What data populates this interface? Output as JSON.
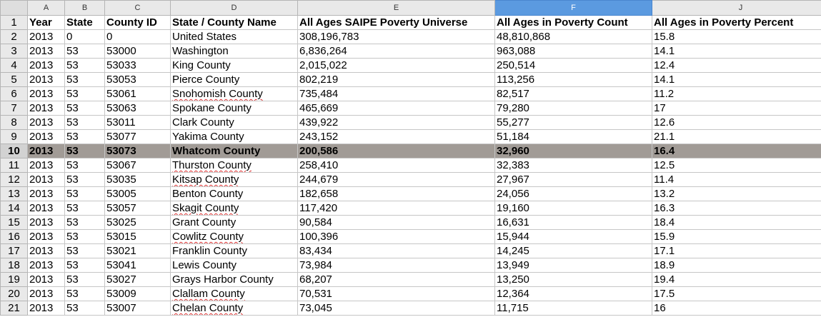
{
  "column_headers": [
    {
      "letter": "A"
    },
    {
      "letter": "B"
    },
    {
      "letter": "C"
    },
    {
      "letter": "D"
    },
    {
      "letter": "E"
    },
    {
      "letter": "F",
      "selected": true
    },
    {
      "letter": "J"
    }
  ],
  "header": {
    "row_number": "1",
    "year": "Year",
    "state": "State",
    "county_id": "County ID",
    "name": "State / County Name",
    "universe": "All Ages SAIPE Poverty Universe",
    "count": "All Ages in Poverty Count",
    "percent": "All Ages in Poverty Percent"
  },
  "highlight_color": "#a19b96",
  "selected_column_color": "#5b9ae0",
  "rows": [
    {
      "row_number": "2",
      "year": "2013",
      "state": "0",
      "county_id": "0",
      "name": "United States",
      "universe": "308,196,783",
      "count": "48,810,868",
      "percent": "15.8"
    },
    {
      "row_number": "3",
      "year": "2013",
      "state": "53",
      "county_id": "53000",
      "name": "Washington",
      "universe": "6,836,264",
      "count": "963,088",
      "percent": "14.1"
    },
    {
      "row_number": "4",
      "year": "2013",
      "state": "53",
      "county_id": "53033",
      "name": "King County",
      "universe": "2,015,022",
      "count": "250,514",
      "percent": "12.4"
    },
    {
      "row_number": "5",
      "year": "2013",
      "state": "53",
      "county_id": "53053",
      "name": "Pierce County",
      "universe": "802,219",
      "count": "113,256",
      "percent": "14.1"
    },
    {
      "row_number": "6",
      "year": "2013",
      "state": "53",
      "county_id": "53061",
      "name": "Snohomish County",
      "universe": "735,484",
      "count": "82,517",
      "percent": "11.2",
      "spell": true
    },
    {
      "row_number": "7",
      "year": "2013",
      "state": "53",
      "county_id": "53063",
      "name": "Spokane County",
      "universe": "465,669",
      "count": "79,280",
      "percent": "17"
    },
    {
      "row_number": "8",
      "year": "2013",
      "state": "53",
      "county_id": "53011",
      "name": "Clark County",
      "universe": "439,922",
      "count": "55,277",
      "percent": "12.6"
    },
    {
      "row_number": "9",
      "year": "2013",
      "state": "53",
      "county_id": "53077",
      "name": "Yakima County",
      "universe": "243,152",
      "count": "51,184",
      "percent": "21.1"
    },
    {
      "row_number": "10",
      "year": "2013",
      "state": "53",
      "county_id": "53073",
      "name": "Whatcom County",
      "universe": "200,586",
      "count": "32,960",
      "percent": "16.4",
      "highlight": true
    },
    {
      "row_number": "11",
      "year": "2013",
      "state": "53",
      "county_id": "53067",
      "name": "Thurston County",
      "universe": "258,410",
      "count": "32,383",
      "percent": "12.5",
      "spell": true
    },
    {
      "row_number": "12",
      "year": "2013",
      "state": "53",
      "county_id": "53035",
      "name": "Kitsap County",
      "universe": "244,679",
      "count": "27,967",
      "percent": "11.4",
      "spell": true
    },
    {
      "row_number": "13",
      "year": "2013",
      "state": "53",
      "county_id": "53005",
      "name": "Benton County",
      "universe": "182,658",
      "count": "24,056",
      "percent": "13.2"
    },
    {
      "row_number": "14",
      "year": "2013",
      "state": "53",
      "county_id": "53057",
      "name": "Skagit County",
      "universe": "117,420",
      "count": "19,160",
      "percent": "16.3",
      "spell": true
    },
    {
      "row_number": "15",
      "year": "2013",
      "state": "53",
      "county_id": "53025",
      "name": "Grant County",
      "universe": "90,584",
      "count": "16,631",
      "percent": "18.4"
    },
    {
      "row_number": "16",
      "year": "2013",
      "state": "53",
      "county_id": "53015",
      "name": "Cowlitz County",
      "universe": "100,396",
      "count": "15,944",
      "percent": "15.9",
      "spell": true
    },
    {
      "row_number": "17",
      "year": "2013",
      "state": "53",
      "county_id": "53021",
      "name": "Franklin County",
      "universe": "83,434",
      "count": "14,245",
      "percent": "17.1"
    },
    {
      "row_number": "18",
      "year": "2013",
      "state": "53",
      "county_id": "53041",
      "name": "Lewis County",
      "universe": "73,984",
      "count": "13,949",
      "percent": "18.9"
    },
    {
      "row_number": "19",
      "year": "2013",
      "state": "53",
      "county_id": "53027",
      "name": "Grays Harbor County",
      "universe": "68,207",
      "count": "13,250",
      "percent": "19.4"
    },
    {
      "row_number": "20",
      "year": "2013",
      "state": "53",
      "county_id": "53009",
      "name": "Clallam County",
      "universe": "70,531",
      "count": "12,364",
      "percent": "17.5",
      "spell": true
    },
    {
      "row_number": "21",
      "year": "2013",
      "state": "53",
      "county_id": "53007",
      "name": "Chelan County",
      "universe": "73,045",
      "count": "11,715",
      "percent": "16",
      "spell": true
    }
  ]
}
